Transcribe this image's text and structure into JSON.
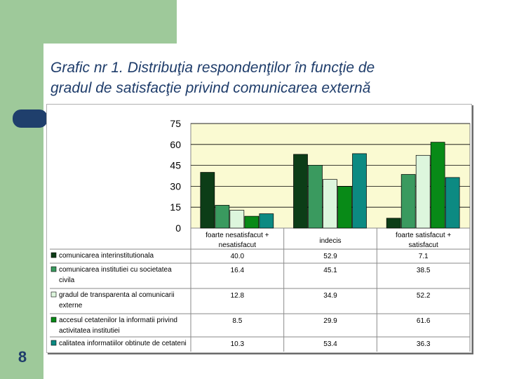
{
  "slide": {
    "title_line1": "Grafic nr 1. Distribuţia respondenţilor în funcţie de",
    "title_line2": "gradul de satisfacţie privind comunicarea externă",
    "page_number": "8"
  },
  "colors": {
    "background_band": "#9ec99a",
    "title": "#1f3d6b",
    "tab": "#1f3f6c",
    "plot_bg": "#fafad2"
  },
  "chart_data": {
    "type": "bar",
    "title": "",
    "xlabel": "",
    "ylabel": "",
    "ylim": [
      0,
      75
    ],
    "yticks": [
      0,
      15,
      30,
      45,
      60,
      75
    ],
    "grid": true,
    "legend": "data-table",
    "categories": [
      "foarte nesatisfacut + nesatisfacut",
      "indecis",
      "foarte satisfacut + satisfacut"
    ],
    "category_lines": [
      [
        "foarte nesatisfacut +",
        "nesatisfacut"
      ],
      [
        "indecis"
      ],
      [
        "foarte satisfacut +",
        "satisfacut"
      ]
    ],
    "series": [
      {
        "name": "comunicarea interinstitutionala",
        "name_lines": [
          "comunicarea interinstitutionala"
        ],
        "color": "#0c3d17",
        "values": [
          40.0,
          52.9,
          7.1
        ],
        "labels": [
          "40.0",
          "52.9",
          "7.1"
        ]
      },
      {
        "name": "comunicarea institutiei cu societatea civila",
        "name_lines": [
          "comunicarea institutiei cu societatea",
          "civila"
        ],
        "color": "#3a9a5f",
        "values": [
          16.4,
          45.1,
          38.5
        ],
        "labels": [
          "16.4",
          "45.1",
          "38.5"
        ]
      },
      {
        "name": "gradul de transparenta al comunicarii externe",
        "name_lines": [
          "gradul de transparenta al comunicarii",
          "externe"
        ],
        "color": "#ddf6dd",
        "values": [
          12.8,
          34.9,
          52.2
        ],
        "labels": [
          "12.8",
          "34.9",
          "52.2"
        ]
      },
      {
        "name": "accesul cetatenilor la informatii privind activitatea institutiei",
        "name_lines": [
          "accesul cetatenilor la informatii privind",
          "activitatea institutiei"
        ],
        "color": "#088a17",
        "values": [
          8.5,
          29.9,
          61.6
        ],
        "labels": [
          "8.5",
          "29.9",
          "61.6"
        ]
      },
      {
        "name": "calitatea informatiilor obtinute de cetateni",
        "name_lines": [
          "calitatea informatiilor obtinute de cetateni"
        ],
        "color": "#0c8a82",
        "values": [
          10.3,
          53.4,
          36.3
        ],
        "labels": [
          "10.3",
          "53.4",
          "36.3"
        ]
      }
    ]
  }
}
